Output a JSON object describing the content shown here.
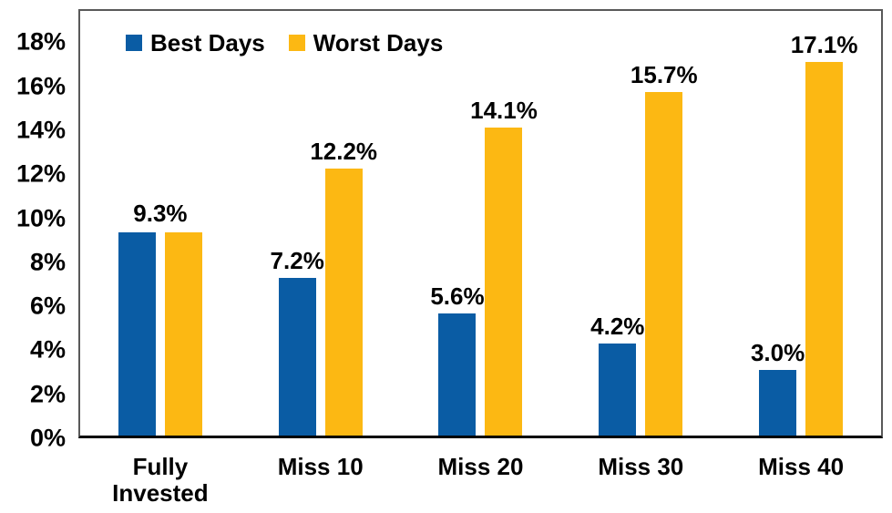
{
  "chart_data": {
    "type": "bar",
    "title": "",
    "categories": [
      "Fully\nInvested",
      "Miss 10",
      "Miss 20",
      "Miss 30",
      "Miss 40"
    ],
    "series": [
      {
        "name": "Best Days",
        "color": "#0A5CA4",
        "values": [
          9.3,
          7.2,
          5.6,
          4.2,
          3.0
        ]
      },
      {
        "name": "Worst Days",
        "color": "#FCB813",
        "values": [
          9.3,
          12.2,
          14.1,
          15.7,
          17.1
        ]
      }
    ],
    "value_labels": [
      {
        "combined": "9.3%"
      },
      {
        "per_bar": [
          "7.2%",
          "12.2%"
        ]
      },
      {
        "per_bar": [
          "5.6%",
          "14.1%"
        ]
      },
      {
        "per_bar": [
          "4.2%",
          "15.7%"
        ]
      },
      {
        "per_bar": [
          "3.0%",
          "17.1%"
        ]
      }
    ],
    "y_axis": {
      "ticks": [
        {
          "label": "0%",
          "value": 0
        },
        {
          "label": "2%",
          "value": 2
        },
        {
          "label": "4%",
          "value": 4
        },
        {
          "label": "6%",
          "value": 6
        },
        {
          "label": "8%",
          "value": 8
        },
        {
          "label": "10%",
          "value": 10
        },
        {
          "label": "12%",
          "value": 12
        },
        {
          "label": "14%",
          "value": 14
        },
        {
          "label": "16%",
          "value": 16
        },
        {
          "label": "18%",
          "value": 18
        }
      ],
      "min": 0,
      "max": 19.4
    },
    "xlabel": "",
    "ylabel": "",
    "grid": false,
    "legend_position": "top-left-inside"
  },
  "colors": {
    "background": "#ffffff",
    "plot_border": "#595959",
    "axis_line": "#000000",
    "text": "#000000"
  }
}
